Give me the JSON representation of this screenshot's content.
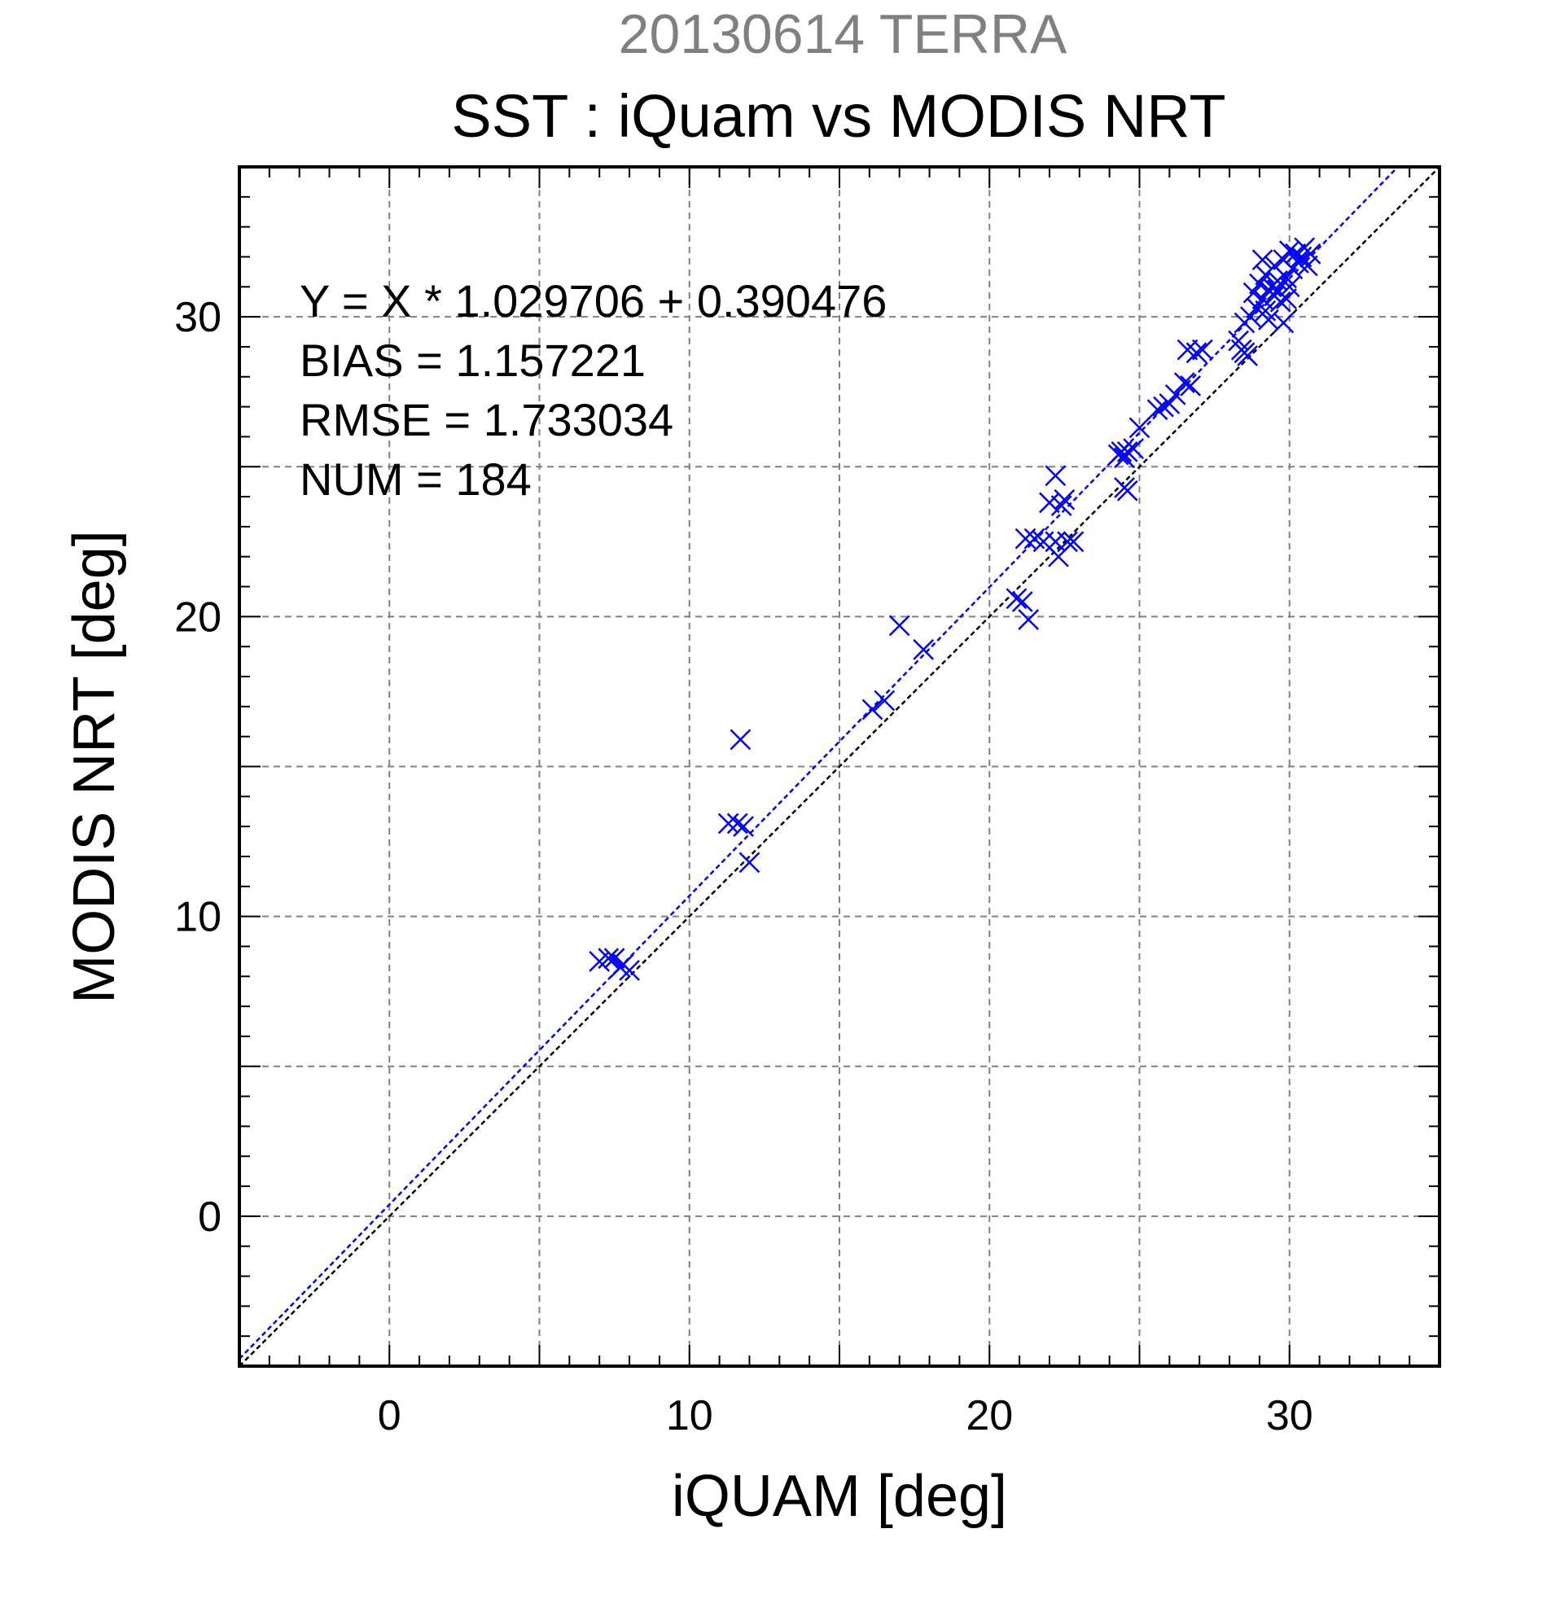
{
  "chart_data": {
    "type": "scatter",
    "title": "SST : iQuam vs MODIS NRT",
    "subtitle": "20130614 TERRA",
    "xlabel": "iQUAM [deg]",
    "ylabel": "MODIS NRT [deg]",
    "xlim": [
      -5,
      35
    ],
    "ylim": [
      -5,
      35
    ],
    "x_ticks": [
      0,
      10,
      20,
      30
    ],
    "y_ticks": [
      0,
      10,
      20,
      30
    ],
    "x_tick_labels": [
      "0",
      "10",
      "20",
      "30"
    ],
    "y_tick_labels": [
      "0",
      "10",
      "20",
      "30"
    ],
    "grid": true,
    "grid_step": 5,
    "minor_tick_step": 1,
    "stats": {
      "equation": "Y = X * 1.029706 + 0.390476",
      "bias": "BIAS = 1.157221",
      "rmse": "RMSE = 1.733034",
      "num": "NUM = 184"
    },
    "fit_line": {
      "slope": 1.029706,
      "intercept": 0.390476,
      "color": "#0000ff"
    },
    "identity_line": {
      "slope": 1,
      "intercept": 0,
      "color": "#000000"
    },
    "series": [
      {
        "marker": "x",
        "color": "#0000ff",
        "points": [
          [
            7.0,
            8.5
          ],
          [
            7.3,
            8.6
          ],
          [
            7.5,
            8.6
          ],
          [
            7.8,
            8.4
          ],
          [
            8.0,
            8.2
          ],
          [
            7.7,
            8.3
          ],
          [
            11.3,
            13.1
          ],
          [
            11.6,
            13.1
          ],
          [
            11.8,
            13.0
          ],
          [
            11.7,
            15.9
          ],
          [
            12.0,
            11.8
          ],
          [
            16.1,
            16.9
          ],
          [
            16.5,
            17.2
          ],
          [
            17.0,
            19.7
          ],
          [
            17.8,
            18.9
          ],
          [
            20.9,
            20.6
          ],
          [
            21.1,
            20.5
          ],
          [
            21.3,
            19.9
          ],
          [
            21.2,
            22.6
          ],
          [
            21.5,
            22.6
          ],
          [
            21.8,
            22.5
          ],
          [
            22.0,
            23.8
          ],
          [
            22.2,
            24.7
          ],
          [
            22.2,
            22.5
          ],
          [
            22.3,
            22.0
          ],
          [
            22.4,
            23.7
          ],
          [
            22.5,
            23.9
          ],
          [
            22.6,
            22.5
          ],
          [
            22.8,
            22.5
          ],
          [
            24.3,
            25.4
          ],
          [
            24.4,
            25.5
          ],
          [
            24.5,
            25.3
          ],
          [
            24.6,
            25.5
          ],
          [
            24.5,
            24.3
          ],
          [
            24.6,
            24.2
          ],
          [
            24.8,
            25.6
          ],
          [
            25.0,
            26.3
          ],
          [
            25.6,
            26.9
          ],
          [
            25.8,
            27.0
          ],
          [
            26.0,
            27.1
          ],
          [
            26.2,
            27.4
          ],
          [
            26.5,
            27.8
          ],
          [
            26.7,
            27.7
          ],
          [
            26.6,
            28.9
          ],
          [
            26.9,
            28.8
          ],
          [
            27.1,
            28.9
          ],
          [
            28.3,
            29.2
          ],
          [
            28.4,
            28.9
          ],
          [
            28.5,
            28.8
          ],
          [
            28.6,
            28.7
          ],
          [
            28.5,
            29.8
          ],
          [
            28.7,
            30.0
          ],
          [
            28.8,
            30.8
          ],
          [
            28.9,
            30.3
          ],
          [
            29.0,
            31.1
          ],
          [
            29.1,
            30.6
          ],
          [
            29.2,
            30.2
          ],
          [
            29.2,
            31.4
          ],
          [
            29.3,
            30.9
          ],
          [
            29.4,
            31.0
          ],
          [
            29.5,
            30.7
          ],
          [
            29.5,
            31.7
          ],
          [
            29.6,
            31.2
          ],
          [
            29.7,
            30.5
          ],
          [
            29.8,
            29.8
          ],
          [
            29.8,
            31.9
          ],
          [
            29.9,
            31.3
          ],
          [
            30.0,
            32.2
          ],
          [
            30.1,
            31.6
          ],
          [
            30.2,
            32.1
          ],
          [
            30.3,
            31.8
          ],
          [
            30.4,
            32.0
          ],
          [
            30.5,
            32.3
          ],
          [
            30.6,
            31.7
          ],
          [
            30.7,
            32.1
          ],
          [
            29.1,
            31.9
          ],
          [
            29.3,
            29.9
          ],
          [
            29.6,
            30.9
          ],
          [
            30.0,
            31.0
          ],
          [
            29.9,
            30.6
          ]
        ]
      }
    ]
  }
}
